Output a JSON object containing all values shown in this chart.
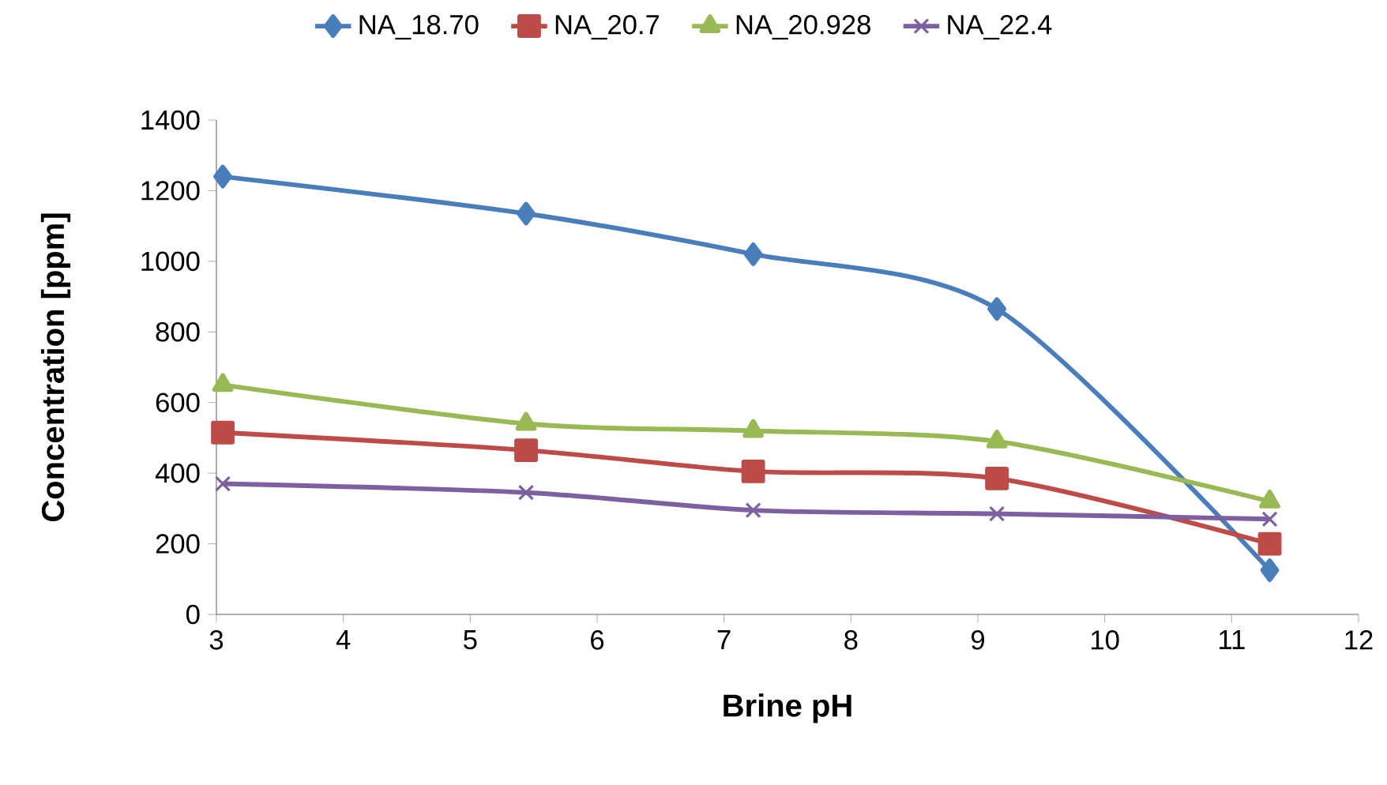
{
  "chart_data": {
    "type": "line",
    "xlabel": "Brine pH",
    "ylabel": "Concentration [ppm]",
    "xlim": [
      3,
      12
    ],
    "xticks": [
      3,
      4,
      5,
      6,
      7,
      8,
      9,
      10,
      11,
      12
    ],
    "ylim": [
      0,
      1400
    ],
    "yticks": [
      0,
      200,
      400,
      600,
      800,
      1000,
      1200,
      1400
    ],
    "grid": false,
    "legend": "top",
    "line_style": "solid",
    "series": [
      {
        "name": "NA_18.70",
        "color": "#4a7ebb",
        "marker": "diamond",
        "x": [
          3.05,
          5.44,
          7.23,
          9.15,
          11.3
        ],
        "values": [
          1240,
          1135,
          1020,
          865,
          125
        ]
      },
      {
        "name": "NA_20.7",
        "color": "#be4b48",
        "marker": "square",
        "x": [
          3.05,
          5.44,
          7.23,
          9.15,
          11.3
        ],
        "values": [
          515,
          465,
          405,
          385,
          200
        ]
      },
      {
        "name": "NA_20.928",
        "color": "#98b954",
        "marker": "triangle",
        "x": [
          3.05,
          5.44,
          7.23,
          9.15,
          11.3
        ],
        "values": [
          650,
          540,
          520,
          490,
          320
        ]
      },
      {
        "name": "NA_22.4",
        "color": "#7d60a0",
        "marker": "cross",
        "x": [
          3.05,
          5.44,
          7.23,
          9.15,
          11.3
        ],
        "values": [
          370,
          345,
          295,
          285,
          270
        ]
      }
    ]
  }
}
